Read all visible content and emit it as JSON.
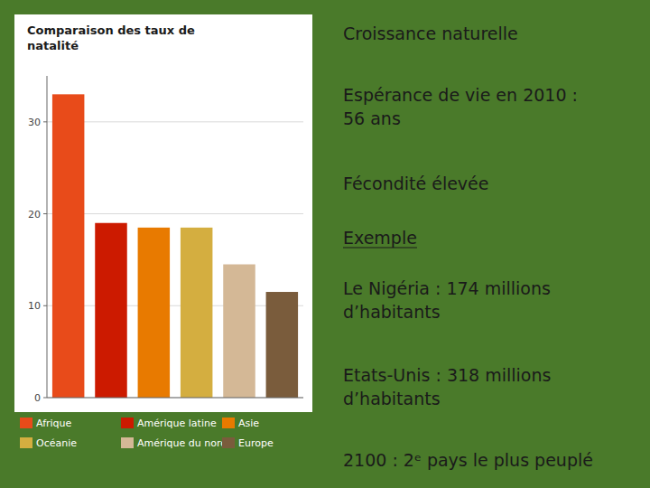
{
  "chart_data": {
    "type": "bar",
    "title": "Comparaison des taux de\nnatalité",
    "categories": [
      "Afrique",
      "Amérique latine",
      "Asie",
      "Océanie",
      "Amérique du nord",
      "Europe"
    ],
    "values": [
      33,
      19,
      18.5,
      18.5,
      14.5,
      11.5
    ],
    "colors": [
      "#E84B1A",
      "#CC1A00",
      "#E87A00",
      "#D4AE40",
      "#D4B896",
      "#7A5C3C"
    ],
    "ylim": [
      0,
      35
    ],
    "yticks": [
      0,
      10,
      20,
      30
    ],
    "grid": true,
    "legend": "bottom",
    "tick_labels": "y",
    "annotations": [
      "Croissance naturelle",
      "Espérance de vie en 2010 :\n56 ans",
      "Fécondité élevée",
      "Exemple",
      "Le Nigéria : 174 millions\nd’habitants",
      "Etats-Unis : 318 millions\nd’habitants",
      "2100 : 2ᵉ pays le plus peuplé"
    ]
  }
}
